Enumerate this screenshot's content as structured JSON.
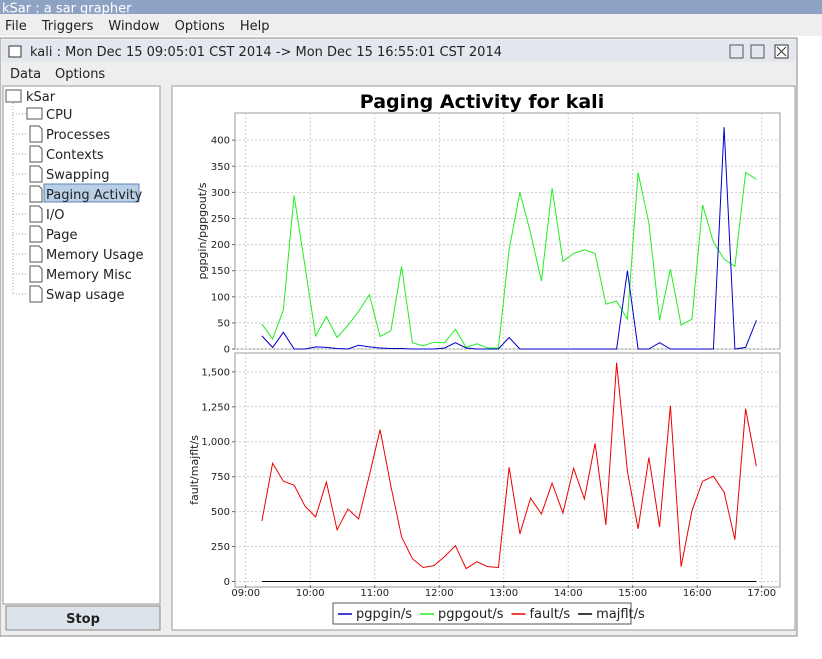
{
  "app_title": "kSar : a sar grapher",
  "menu": [
    "File",
    "Triggers",
    "Window",
    "Options",
    "Help"
  ],
  "frame_title": "kali : Mon Dec 15 09:05:01 CST 2014 -> Mon Dec 15 16:55:01 CST 2014",
  "frame_menu": [
    "Data",
    "Options"
  ],
  "tree": {
    "root": "kSar",
    "nodes": [
      "CPU",
      "Processes",
      "Contexts",
      "Swapping",
      "Paging Activity",
      "I/O",
      "Page",
      "Memory Usage",
      "Memory Misc",
      "Swap usage"
    ]
  },
  "button": "Stop",
  "chart_data": [
    {
      "type": "line",
      "title": "Paging Activity for kali",
      "y_label": "pgpgin/pgpgout/s",
      "x": [
        "09:15",
        "09:25",
        "09:35",
        "09:45",
        "09:55",
        "10:05",
        "10:15",
        "10:25",
        "10:35",
        "10:45",
        "10:55",
        "11:05",
        "11:15",
        "11:25",
        "11:35",
        "11:45",
        "11:55",
        "12:05",
        "12:15",
        "12:25",
        "12:35",
        "12:45",
        "12:55",
        "13:05",
        "13:15",
        "13:25",
        "13:35",
        "13:45",
        "13:55",
        "14:05",
        "14:15",
        "14:25",
        "14:35",
        "14:45",
        "14:55",
        "15:05",
        "15:15",
        "15:25",
        "15:35",
        "15:45",
        "15:55",
        "16:05",
        "16:15",
        "16:25",
        "16:35",
        "16:45",
        "16:55"
      ],
      "xlim": [
        "08:50",
        "17:17"
      ],
      "ylim": [
        0,
        452
      ],
      "yticks": [
        0,
        50,
        100,
        150,
        200,
        250,
        300,
        350,
        400
      ],
      "grid": true,
      "series": [
        {
          "name": "pgpgin/s",
          "color": "#0000cc",
          "values": [
            25,
            3,
            32,
            0,
            0,
            4,
            3,
            1,
            0,
            7,
            4,
            2,
            1,
            1,
            0,
            0,
            0,
            2,
            12,
            2,
            0,
            0,
            0,
            22,
            0,
            0,
            0,
            0,
            0,
            0,
            0,
            0,
            0,
            0,
            150,
            0,
            0,
            12,
            0,
            0,
            0,
            0,
            0,
            425,
            0,
            3,
            55
          ]
        },
        {
          "name": "pgpgout/s",
          "color": "#22ee22",
          "values": [
            48,
            19,
            75,
            294,
            160,
            25,
            62,
            22,
            45,
            72,
            104,
            24,
            35,
            158,
            12,
            6,
            13,
            12,
            38,
            3,
            10,
            2,
            2,
            190,
            300,
            222,
            130,
            308,
            168,
            183,
            190,
            183,
            86,
            92,
            57,
            338,
            241,
            55,
            153,
            46,
            57,
            276,
            205,
            172,
            158,
            338,
            325
          ]
        }
      ]
    },
    {
      "type": "line",
      "y_label": "fault/majflt/s",
      "x": [
        "09:15",
        "09:25",
        "09:35",
        "09:45",
        "09:55",
        "10:05",
        "10:15",
        "10:25",
        "10:35",
        "10:45",
        "10:55",
        "11:05",
        "11:15",
        "11:25",
        "11:35",
        "11:45",
        "11:55",
        "12:05",
        "12:15",
        "12:25",
        "12:35",
        "12:45",
        "12:55",
        "13:05",
        "13:15",
        "13:25",
        "13:35",
        "13:45",
        "13:55",
        "14:05",
        "14:15",
        "14:25",
        "14:35",
        "14:45",
        "14:55",
        "15:05",
        "15:15",
        "15:25",
        "15:35",
        "15:45",
        "15:55",
        "16:05",
        "16:15",
        "16:25",
        "16:35",
        "16:45",
        "16:55"
      ],
      "xlim": [
        "08:50",
        "17:17"
      ],
      "xticks": [
        "09:00",
        "10:00",
        "11:00",
        "12:00",
        "13:00",
        "14:00",
        "15:00",
        "16:00",
        "17:00"
      ],
      "ylim": [
        -25,
        1635
      ],
      "yticks": [
        0,
        250,
        500,
        750,
        {
          "value": 1000,
          "label": "1,000"
        },
        {
          "value": 1250,
          "label": "1,250"
        },
        {
          "value": 1500,
          "label": "1,500"
        }
      ],
      "grid": true,
      "series": [
        {
          "name": "fault/s",
          "color": "#ee0000",
          "values": [
            433,
            846,
            718,
            690,
            540,
            462,
            711,
            370,
            519,
            448,
            760,
            1087,
            682,
            320,
            163,
            100,
            114,
            178,
            256,
            92,
            142,
            107,
            100,
            817,
            341,
            597,
            483,
            704,
            490,
            810,
            590,
            988,
            405,
            1565,
            789,
            377,
            888,
            391,
            1258,
            107,
            505,
            718,
            753,
            640,
            299,
            1237,
            824
          ]
        },
        {
          "name": "majflt/s",
          "color": "#000000",
          "values": [
            0,
            0,
            0,
            0,
            0,
            0,
            0,
            0,
            0,
            0,
            0,
            0,
            0,
            0,
            0,
            0,
            0,
            0,
            0,
            0,
            0,
            0,
            0,
            0,
            0,
            0,
            0,
            0,
            0,
            0,
            0,
            0,
            0,
            0,
            0,
            0,
            0,
            0,
            0,
            0,
            0,
            0,
            0,
            0,
            0,
            0,
            0
          ]
        }
      ]
    }
  ]
}
